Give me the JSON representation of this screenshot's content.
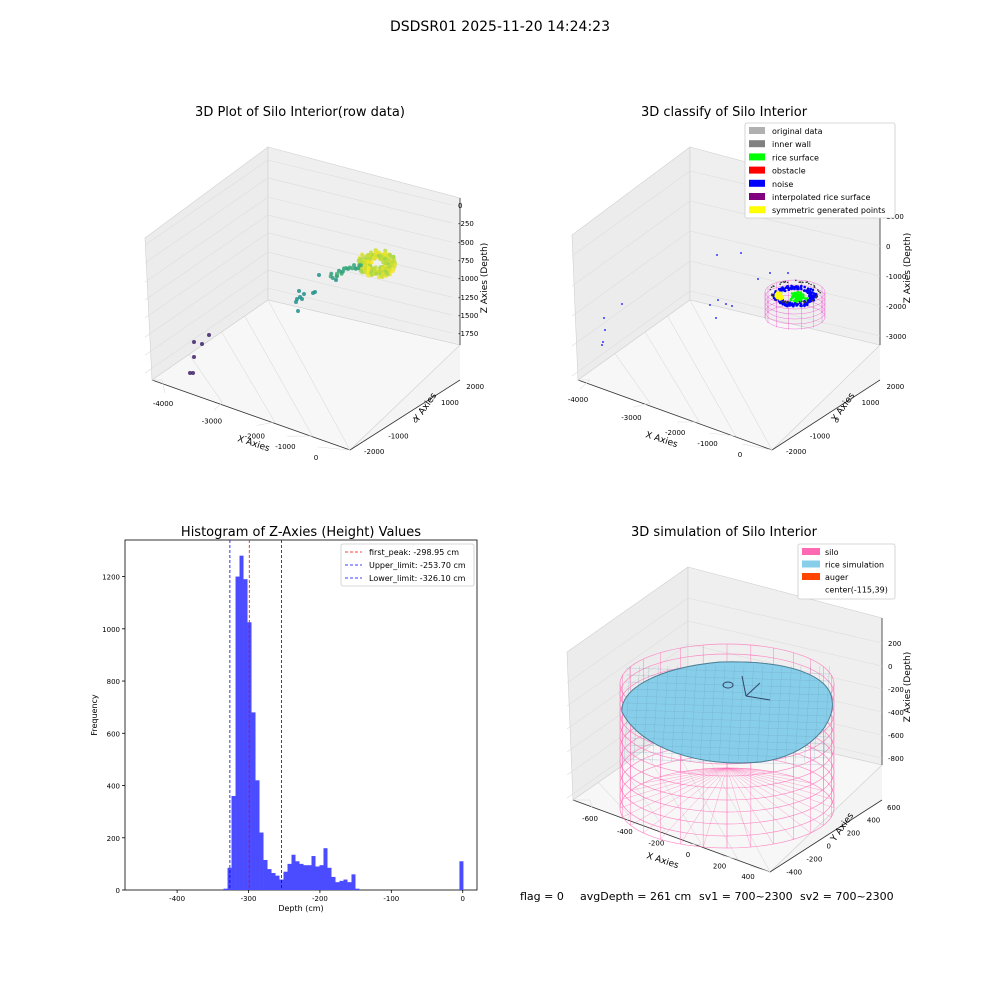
{
  "suptitle": "DSDSR01 2025-11-20 14:24:23",
  "footer": {
    "flag": "flag = 0",
    "avg_depth": "avgDepth = 261 cm",
    "sv1": "sv1 = 700~2300",
    "sv2": "sv2 = 700~2300"
  },
  "chart_data": [
    {
      "type": "scatter",
      "title": "3D Plot of Silo Interior(row data)",
      "xlabel": "X Axies",
      "ylabel": "Y Axies",
      "zlabel": "Z Axies (Depth)",
      "x_ticks": [
        "-4000",
        "-3000",
        "-2000",
        "-1000",
        "0"
      ],
      "y_ticks": [
        "-2000",
        "-1000",
        "0",
        "1000",
        "2000"
      ],
      "z_ticks": [
        "-1750",
        "-1500",
        "-1250",
        "-1000",
        "-750",
        "-500",
        "-250",
        "0"
      ],
      "colormap": "viridis",
      "grid": true
    },
    {
      "type": "scatter",
      "title": "3D classify of Silo Interior",
      "xlabel": "X Axies",
      "ylabel": "Y Axies",
      "zlabel": "Z Axies (Depth)",
      "x_ticks": [
        "-4000",
        "-3000",
        "-2000",
        "-1000",
        "0"
      ],
      "y_ticks": [
        "-2000",
        "-1000",
        "0",
        "1000",
        "2000"
      ],
      "z_ticks": [
        "-3000",
        "-2000",
        "-1000",
        "0",
        "1000"
      ],
      "legend_position": "top-right",
      "legend": [
        {
          "name": "original data",
          "color": "#b0b0b0"
        },
        {
          "name": "inner wall",
          "color": "#808080"
        },
        {
          "name": "rice surface",
          "color": "#00ff00"
        },
        {
          "name": "obstacle",
          "color": "#ff0000"
        },
        {
          "name": "noise",
          "color": "#0000ff"
        },
        {
          "name": "interpolated rice surface",
          "color": "#800080"
        },
        {
          "name": "symmetric generated points",
          "color": "#ffff00"
        }
      ],
      "grid": true
    },
    {
      "type": "bar",
      "title": "Histogram of Z-Axies (Height) Values",
      "xlabel": "Depth (cm)",
      "ylabel": "Frequency",
      "xlim": [
        -473,
        20
      ],
      "ylim": [
        0,
        1340
      ],
      "x_ticks": [
        "-400",
        "-300",
        "-200",
        "-100",
        "0"
      ],
      "y_ticks": [
        "0",
        "200",
        "400",
        "600",
        "800",
        "1000",
        "1200"
      ],
      "bar_color": "#4b4bff",
      "bin_width": 5.6,
      "bin_starts": [
        -335,
        -329.4,
        -323.8,
        -318.2,
        -312.6,
        -307,
        -301.4,
        -295.8,
        -290.2,
        -284.6,
        -279,
        -273.4,
        -267.8,
        -262.2,
        -256.6,
        -251,
        -245.4,
        -239.8,
        -234.2,
        -228.6,
        -223,
        -217.4,
        -211.8,
        -206.2,
        -200.6,
        -195,
        -189.4,
        -183.8,
        -178.2,
        -172.6,
        -167,
        -161.4,
        -155.8,
        -150.2,
        -144.6,
        -139,
        -133.4,
        -127.8,
        -122.2,
        -116.6,
        -111,
        -105.4,
        -99.8,
        -94.2,
        -88.6,
        -83,
        -77.4,
        -71.8,
        -66.2,
        -60.6,
        -55,
        -49.4,
        -43.8,
        -38.2,
        -32.6,
        -27,
        -21.4,
        -15.8,
        -10.2,
        -4.6
      ],
      "values": [
        5,
        85,
        360,
        1200,
        1280,
        1190,
        1025,
        680,
        420,
        220,
        115,
        80,
        65,
        55,
        40,
        70,
        100,
        135,
        110,
        100,
        95,
        95,
        130,
        90,
        95,
        160,
        85,
        50,
        30,
        35,
        40,
        30,
        60,
        5,
        0,
        0,
        0,
        0,
        0,
        0,
        0,
        0,
        0,
        0,
        0,
        0,
        0,
        0,
        0,
        0,
        0,
        0,
        0,
        0,
        0,
        0,
        0,
        0,
        0,
        110
      ],
      "reference_lines": [
        {
          "label": "first_peak: -298.95 cm",
          "x": -298.95,
          "color": "#ff0000"
        },
        {
          "label": "Upper_limit: -253.70 cm",
          "x": -253.7,
          "color": "#0000ff"
        },
        {
          "label": "Lower_limit: -326.10 cm",
          "x": -326.1,
          "color": "#0000ff"
        }
      ],
      "legend_position": "top-right"
    },
    {
      "type": "surface",
      "title": "3D simulation of Silo Interior",
      "xlabel": "X Axies",
      "ylabel": "Y Axies",
      "zlabel": "Z Axies (Depth)",
      "x_ticks": [
        "-600",
        "-400",
        "-200",
        "0",
        "200",
        "400"
      ],
      "y_ticks": [
        "-400",
        "-200",
        "0",
        "200",
        "400",
        "600"
      ],
      "z_ticks": [
        "-800",
        "-600",
        "-400",
        "-200",
        "0",
        "200"
      ],
      "legend_position": "top-right",
      "legend": [
        {
          "name": "silo",
          "color": "#ff69b4"
        },
        {
          "name": "rice simulation",
          "color": "#87ceeb"
        },
        {
          "name": "auger",
          "color": "#ff4500"
        },
        {
          "name": "center(-115,39)",
          "color": "none"
        }
      ],
      "grid": true
    }
  ]
}
